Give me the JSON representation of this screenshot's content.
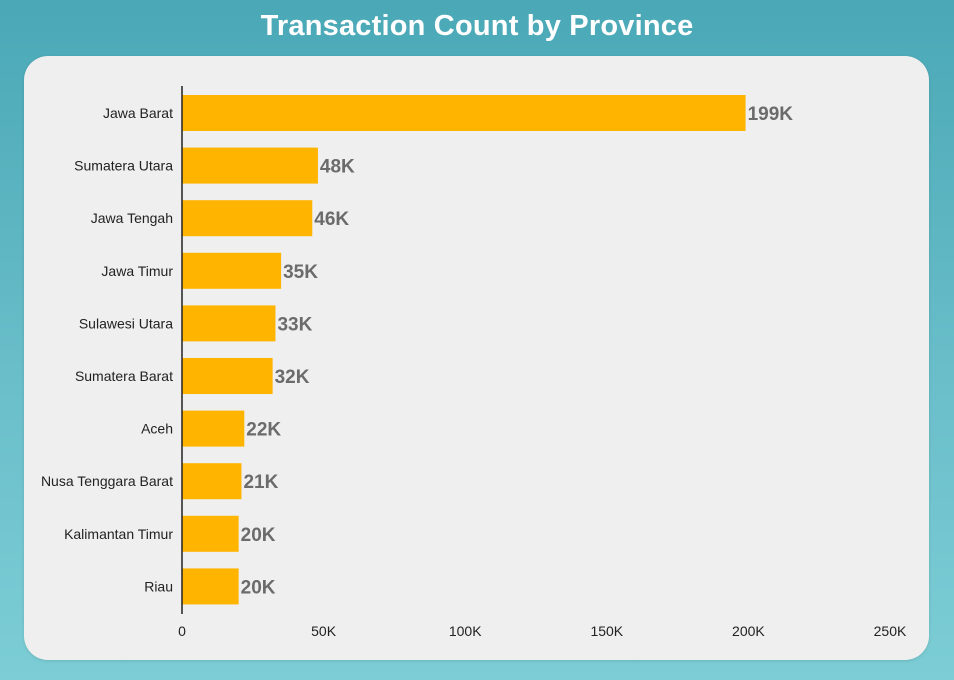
{
  "chart_data": {
    "type": "bar",
    "orientation": "horizontal",
    "title": "Transaction Count by Province",
    "xlabel": "",
    "ylabel": "",
    "categories": [
      "Jawa Barat",
      "Sumatera Utara",
      "Jawa Tengah",
      "Jawa Timur",
      "Sulawesi Utara",
      "Sumatera Barat",
      "Aceh",
      "Nusa Tenggara Barat",
      "Kalimantan Timur",
      "Riau"
    ],
    "values": [
      199000,
      48000,
      46000,
      35000,
      33000,
      32000,
      22000,
      21000,
      20000,
      20000
    ],
    "value_labels": [
      "199K",
      "48K",
      "46K",
      "35K",
      "33K",
      "32K",
      "22K",
      "21K",
      "20K",
      "20K"
    ],
    "xlim": [
      0,
      250000
    ],
    "xticks": [
      0,
      50000,
      100000,
      150000,
      200000,
      250000
    ],
    "xtick_labels": [
      "0",
      "50K",
      "100K",
      "150K",
      "200K",
      "250K"
    ],
    "grid": false,
    "legend": "none",
    "bar_color": "#ffb400"
  }
}
